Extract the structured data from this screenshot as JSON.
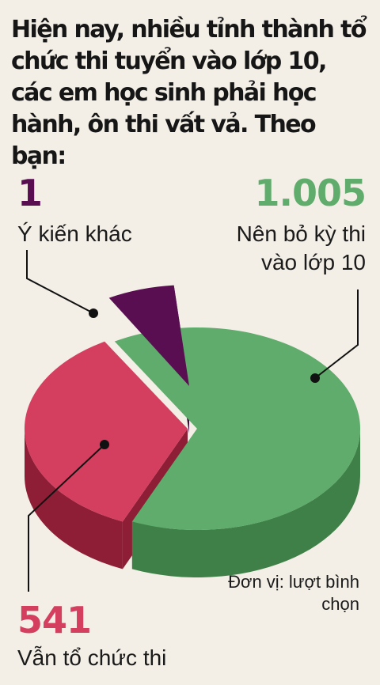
{
  "question": "Hiện nay, nhiều tỉnh thành tổ chức thi tuyển vào lớp 10, các em học sinh phải học hành, ôn thi vất vả. Theo bạn:",
  "unit_label": "Đơn vị: lượt bình chọn",
  "colors": {
    "background": "#f3efe6",
    "other_top": "#5a0e52",
    "other_side": "#3f0a3a",
    "keep_top": "#d43f5f",
    "keep_side": "#8e1e36",
    "abolish_top": "#5fac6c",
    "abolish_side": "#3f8048",
    "leader": "#111111"
  },
  "chart_data": {
    "type": "pie",
    "style": "3d exploded",
    "unit": "lượt bình chọn",
    "slices": [
      {
        "label": "Nên bỏ kỳ thi vào lớp 10",
        "value": 1005,
        "value_text": "1.005",
        "color": "#5fac6c"
      },
      {
        "label": "Vẫn tổ chức thi",
        "value": 541,
        "value_text": "541",
        "color": "#d43f5f"
      },
      {
        "label": "Ý kiến khác",
        "value": 1,
        "value_text": "1",
        "color": "#5a0e52"
      }
    ]
  }
}
